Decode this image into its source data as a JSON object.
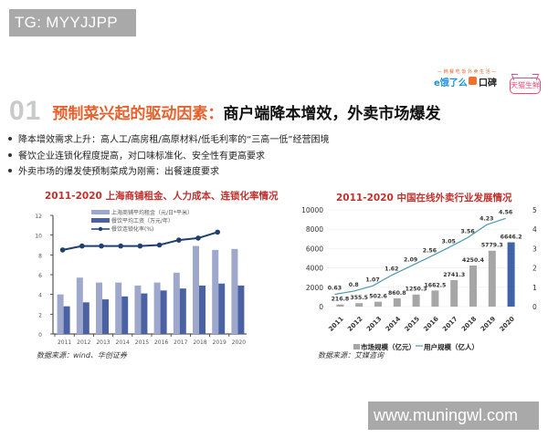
{
  "watermarks": {
    "top": "TG: MYYJJPP",
    "bottom": "www.muningwl.com"
  },
  "heading": {
    "number": "01",
    "title_highlight": "预制菜兴起的驱动因素：",
    "title_rest": "商户端降本增效，外卖市场爆发"
  },
  "logos": {
    "tagline": "— 韩 餐 吃 饭 外 卖 生 活 —",
    "eleme": "e饿了么",
    "koubei": "口碑",
    "tmall_fresh": "天猫生鲜"
  },
  "bullets": [
    "降本增效需求上升：高人工/高房租/高原材料/低毛利率的“三高一低”经营困境",
    "餐饮企业连锁化程度提高，对口味标准化、安全性有更高要求",
    "外卖市场的爆发使预制菜成为刚需：出餐速度要求"
  ],
  "colors": {
    "accent_orange": "#e8602c",
    "chart_title_red": "#c0302c",
    "bar_light": "#9ea8cc",
    "bar_dark": "#4a62a4",
    "line_navy": "#1f3f6e",
    "bar_gray": "#a6a6a6",
    "bar_blue_2020": "#3f63a8",
    "line_teal": "#4a9ab0"
  },
  "chart_data": [
    {
      "type": "bar",
      "title": "2011-2020 上海商铺租金、人力成本、连锁化率情况",
      "categories": [
        "2011",
        "2012",
        "2013",
        "2014",
        "2015",
        "2016",
        "2017",
        "2018",
        "2019",
        "2020"
      ],
      "yticks": [
        "0",
        "2",
        "4",
        "6",
        "8",
        "10",
        "12"
      ],
      "ylim": [
        0,
        12
      ],
      "legend": [
        "上海商铺平均租金（元/日*平米）",
        "餐饮平均工资（万元/年）",
        "餐饮连锁化率(%)"
      ],
      "series": [
        {
          "name": "上海商铺平均租金（元/日*平米）",
          "type": "bar",
          "values": [
            4.0,
            5.7,
            5.2,
            5.2,
            4.9,
            5.2,
            6.2,
            8.9,
            8.5,
            8.6
          ]
        },
        {
          "name": "餐饮平均工资（万元/年）",
          "type": "bar",
          "values": [
            2.8,
            3.2,
            3.5,
            3.8,
            4.1,
            4.4,
            4.6,
            4.9,
            5.1,
            4.9
          ]
        },
        {
          "name": "餐饮连锁化率(%)",
          "type": "line",
          "values": [
            8.5,
            8.9,
            8.9,
            8.9,
            8.9,
            9.0,
            9.5,
            9.7,
            10.3,
            null
          ]
        }
      ],
      "source": "数据来源：wind、华创证券"
    },
    {
      "type": "bar",
      "title": "2011-2020 中国在线外卖行业发展情况",
      "categories": [
        "2011",
        "2012",
        "2013",
        "2014",
        "2015",
        "2016",
        "2017",
        "2018",
        "2019",
        "2020"
      ],
      "yticks_left": [
        "0",
        "2000",
        "4000",
        "6000",
        "8000",
        "10000"
      ],
      "yticks_right": [
        "0",
        "1",
        "2",
        "3",
        "4",
        "5"
      ],
      "ylim_left": [
        0,
        10000
      ],
      "ylim_right": [
        0,
        5
      ],
      "legend": [
        "市场规模（亿元）",
        "用户规模（亿人）"
      ],
      "series": [
        {
          "name": "市场规模（亿元）",
          "type": "bar",
          "values": [
            216.8,
            355.5,
            502.6,
            860.8,
            1250.3,
            1662.5,
            2741.3,
            4250.4,
            5779.3,
            6646.2
          ],
          "labels": [
            "216.8",
            "355.5",
            "502.6",
            "860.8",
            "1250.3",
            "1662.5",
            "2741.3",
            "4250.4",
            "5779.3",
            "6646.2"
          ]
        },
        {
          "name": "用户规模（亿人）",
          "type": "line",
          "values": [
            0.63,
            0.8,
            1.07,
            1.62,
            2.09,
            2.56,
            3.05,
            3.56,
            4.23,
            4.56
          ],
          "labels": [
            "0.63",
            "0.8",
            "1.07",
            "1.62",
            "2.09",
            "2.56",
            "3.05",
            "3.56",
            "4.23",
            "4.56"
          ]
        }
      ],
      "source": "数据来源：艾媒咨询"
    }
  ]
}
